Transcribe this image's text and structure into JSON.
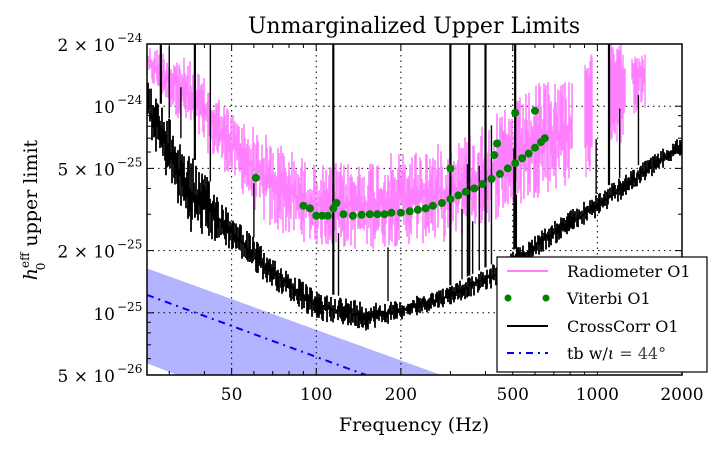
{
  "chart_data": {
    "type": "line",
    "title": "Unmarginalized Upper Limits",
    "xlabel": "Frequency (Hz)",
    "ylabel_main": "h",
    "ylabel_sup": "eff",
    "ylabel_sub": "0",
    "ylabel_rest": " upper limit",
    "xscale": "log",
    "yscale": "log",
    "xlim": [
      25,
      2000
    ],
    "ylim": [
      5e-26,
      2e-24
    ],
    "grid": true,
    "legend_position": "lower-right",
    "x_ticks": [
      {
        "value": 50,
        "label": "50"
      },
      {
        "value": 100,
        "label": "100"
      },
      {
        "value": 200,
        "label": "200"
      },
      {
        "value": 500,
        "label": "500"
      },
      {
        "value": 1000,
        "label": "1000"
      },
      {
        "value": 2000,
        "label": "2000"
      }
    ],
    "y_ticks": [
      {
        "value": 5e-26,
        "mant": "5 × 10",
        "exp": "−26"
      },
      {
        "value": 1e-25,
        "mant": "10",
        "exp": "−25"
      },
      {
        "value": 2e-25,
        "mant": "2 × 10",
        "exp": "−25"
      },
      {
        "value": 5e-25,
        "mant": "5 × 10",
        "exp": "−25"
      },
      {
        "value": 1e-24,
        "mant": "10",
        "exp": "−24"
      },
      {
        "value": 2e-24,
        "mant": "2 × 10",
        "exp": "−24"
      }
    ],
    "series": [
      {
        "name": "Radiometer O1",
        "style": "band-noise",
        "color": "#ff80ff",
        "x": [
          25,
          35,
          50,
          68,
          100,
          144,
          200,
          302,
          457,
          636,
          813
        ],
        "upper": [
          2e-24,
          1.7e-24,
          9.5e-25,
          7.2e-25,
          5.2e-25,
          5.5e-25,
          6.1e-25,
          6.8e-25,
          9.5e-25,
          1.34e-24,
          1.5e-24
        ],
        "lower": [
          1.34e-24,
          7.6e-25,
          4.4e-25,
          2.5e-25,
          2.1e-25,
          2e-25,
          2.1e-25,
          2.2e-25,
          2.9e-25,
          3.7e-25,
          4.1e-25
        ],
        "bursts": [
          {
            "f_start": 900,
            "f_end": 960,
            "top": 1.8e-24,
            "bottom": 4.5e-25
          },
          {
            "f_start": 1100,
            "f_end": 1250,
            "top": 2e-24,
            "bottom": 6.5e-25
          },
          {
            "f_start": 1330,
            "f_end": 1480,
            "top": 2e-24,
            "bottom": 9e-25
          }
        ]
      },
      {
        "name": "Viterbi O1",
        "style": "markers",
        "color": "#008000",
        "points": [
          [
            61,
            4.5e-25
          ],
          [
            90,
            3.3e-25
          ],
          [
            95,
            3.2e-25
          ],
          [
            100,
            2.95e-25
          ],
          [
            105,
            2.95e-25
          ],
          [
            110,
            2.95e-25
          ],
          [
            115,
            3.2e-25
          ],
          [
            118,
            3.4e-25
          ],
          [
            125,
            3e-25
          ],
          [
            135,
            2.95e-25
          ],
          [
            145,
            2.98e-25
          ],
          [
            155,
            3e-25
          ],
          [
            165,
            3e-25
          ],
          [
            175,
            3e-25
          ],
          [
            185,
            3.05e-25
          ],
          [
            200,
            3.05e-25
          ],
          [
            215,
            3.1e-25
          ],
          [
            230,
            3.15e-25
          ],
          [
            245,
            3.2e-25
          ],
          [
            260,
            3.3e-25
          ],
          [
            280,
            3.4e-25
          ],
          [
            300,
            3.55e-25
          ],
          [
            320,
            3.7e-25
          ],
          [
            340,
            3.85e-25
          ],
          [
            365,
            4e-25
          ],
          [
            390,
            4.2e-25
          ],
          [
            420,
            4.45e-25
          ],
          [
            450,
            4.7e-25
          ],
          [
            480,
            5e-25
          ],
          [
            510,
            5.3e-25
          ],
          [
            540,
            5.6e-25
          ],
          [
            570,
            5.9e-25
          ],
          [
            600,
            6.3e-25
          ],
          [
            630,
            6.7e-25
          ],
          [
            650,
            7e-25
          ],
          [
            430,
            5.8e-25
          ],
          [
            440,
            6.6e-25
          ],
          [
            510,
            9.3e-25
          ],
          [
            600,
            9.5e-25
          ],
          [
            300,
            5e-25
          ]
        ]
      },
      {
        "name": "CrossCorr O1",
        "style": "band-noise",
        "color": "#000000",
        "x": [
          25,
          35,
          50,
          68,
          100,
          150,
          200,
          300,
          450,
          650,
          1000,
          2000
        ],
        "upper": [
          1.34e-24,
          6.1e-25,
          3.1e-25,
          1.9e-25,
          1.27e-25,
          1.14e-25,
          1.14e-25,
          1.36e-25,
          1.8e-25,
          2.6e-25,
          3.8e-25,
          7.2e-25
        ],
        "lower": [
          7.6e-25,
          2.5e-25,
          2e-25,
          1.36e-25,
          9.2e-26,
          8.2e-26,
          9.2e-26,
          1.09e-25,
          1.36e-25,
          2e-25,
          2.9e-25,
          5.8e-25
        ],
        "spikes": [
          28,
          30,
          33,
          37,
          42,
          60,
          115,
          120,
          180,
          300,
          330,
          345,
          350,
          360,
          380,
          400,
          420,
          505,
          510,
          515,
          990,
          1100,
          1200,
          1400
        ]
      },
      {
        "name": "tb w/ι = 44°",
        "legend_label_main": "tb w/",
        "legend_label_iota": "ι",
        "legend_label_rest": " = 44°",
        "style": "dashdot",
        "color": "#0000ff",
        "x": [
          25,
          150
        ],
        "y": [
          1.22e-25,
          5e-26
        ],
        "band": {
          "color": "#b3b3ff",
          "x": [
            25,
            278
          ],
          "upper": [
            1.64e-25,
            5e-26
          ],
          "lower_x": [
            25,
            32
          ],
          "lower": [
            5.7e-26,
            5e-26
          ]
        }
      }
    ],
    "legend": [
      {
        "label": "Radiometer O1",
        "marker": "line",
        "color": "#ff80ff"
      },
      {
        "label": "Viterbi O1",
        "marker": "dots",
        "color": "#008000"
      },
      {
        "label": "CrossCorr O1",
        "marker": "line",
        "color": "#000000"
      },
      {
        "label_main": "tb w/",
        "label_iota": "ι",
        "label_rest": " = 44°",
        "marker": "dashdot",
        "color": "#0000ff"
      }
    ]
  }
}
